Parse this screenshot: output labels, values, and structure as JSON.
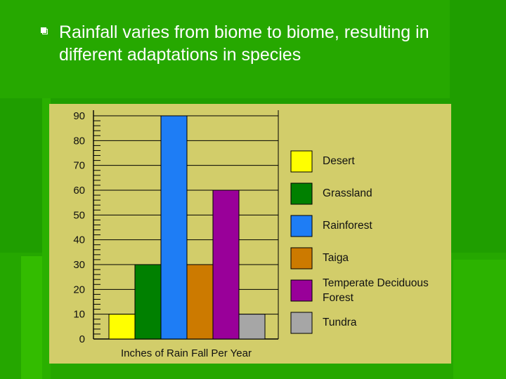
{
  "slide": {
    "bullet_icon": "square-bullet-icon",
    "text": "Rainfall varies from biome to biome, resulting in different adaptations in species"
  },
  "colors": {
    "background": "#22a400",
    "chart_background": "#d2cd6a",
    "text": "#ffffff"
  },
  "chart_data": {
    "type": "bar",
    "title": "",
    "xlabel": "Inches of Rain Fall Per Year",
    "ylabel": "",
    "ylim": [
      0,
      90
    ],
    "yticks": [
      "0",
      "10",
      "20",
      "30",
      "40",
      "50",
      "60",
      "70",
      "80",
      "90"
    ],
    "categories": [
      "Desert",
      "Grassland",
      "Rainforest",
      "Taiga",
      "Temperate Deciduous Forest",
      "Tundra"
    ],
    "legend_labels": [
      "Desert",
      "Grassland",
      "Rainforest",
      "Taiga",
      "Temperate Deciduous\nForest",
      "Tundra"
    ],
    "values": [
      10,
      30,
      90,
      30,
      60,
      10
    ],
    "colors": [
      "#ffff00",
      "#008000",
      "#1e7df5",
      "#cc7a00",
      "#990099",
      "#a6a6a6"
    ],
    "legend_position": "right"
  }
}
